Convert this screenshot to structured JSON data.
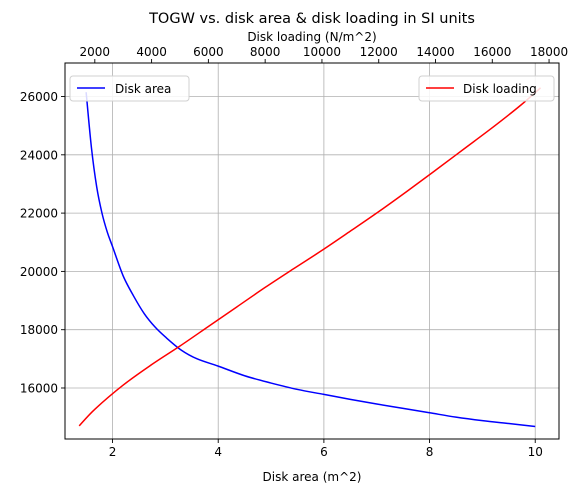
{
  "chart_data": {
    "type": "line",
    "title": "TOGW vs. disk area & disk loading in SI units",
    "xlabel": "Disk area (m^2)",
    "x2label": "Disk loading (N/m^2)",
    "ylabel": "",
    "xlim": [
      1.1,
      10.45
    ],
    "x2lim": [
      950,
      18350
    ],
    "ylim": [
      14250,
      27150
    ],
    "x_ticks": [
      2,
      4,
      6,
      8,
      10
    ],
    "x_tick_labels": [
      "2",
      "4",
      "6",
      "8",
      "10"
    ],
    "x2_ticks": [
      2000,
      4000,
      6000,
      8000,
      10000,
      12000,
      14000,
      16000,
      18000
    ],
    "x2_tick_labels": [
      "2000",
      "4000",
      "6000",
      "8000",
      "10000",
      "12000",
      "14000",
      "16000",
      "18000"
    ],
    "y_ticks": [
      16000,
      18000,
      20000,
      22000,
      24000,
      26000
    ],
    "y_tick_labels": [
      "16000",
      "18000",
      "20000",
      "22000",
      "24000",
      "26000"
    ],
    "grid": true,
    "series": [
      {
        "name": "Disk area",
        "axis": "bottom",
        "color": "#0000ff",
        "legend_position": "upper left",
        "x": [
          1.5,
          1.6,
          1.7,
          1.8,
          1.9,
          2.0,
          2.2,
          2.4,
          2.6,
          2.8,
          3.0,
          3.3,
          3.6,
          4.0,
          4.5,
          5.0,
          5.5,
          6.0,
          6.5,
          7.0,
          7.5,
          8.0,
          8.5,
          9.0,
          9.5,
          10.0
        ],
        "y": [
          26150,
          24250,
          22900,
          22000,
          21350,
          20850,
          19850,
          19150,
          18550,
          18100,
          17750,
          17300,
          17000,
          16750,
          16420,
          16170,
          15950,
          15780,
          15610,
          15450,
          15300,
          15150,
          15000,
          14880,
          14780,
          14680
        ]
      },
      {
        "name": "Disk loading",
        "axis": "top",
        "color": "#ff0000",
        "legend_position": "upper right",
        "x": [
          1450,
          2000,
          3000,
          4000,
          5000,
          6000,
          7000,
          8000,
          9000,
          10000,
          11000,
          12000,
          13000,
          14000,
          15000,
          16000,
          17000,
          17700
        ],
        "y": [
          14700,
          15270,
          16100,
          16800,
          17440,
          18110,
          18780,
          19450,
          20090,
          20720,
          21380,
          22050,
          22750,
          23470,
          24200,
          24930,
          25700,
          26300
        ]
      }
    ]
  }
}
